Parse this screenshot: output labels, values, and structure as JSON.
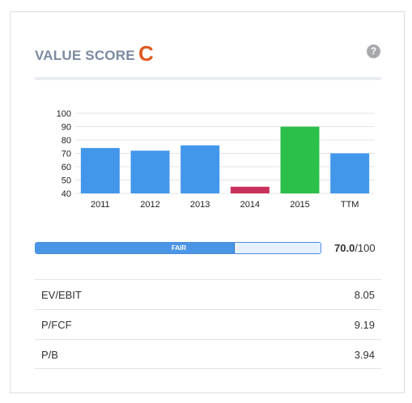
{
  "header": {
    "title": "VALUE SCORE",
    "grade": "C",
    "help_icon": "question-circle-icon"
  },
  "chart_data": {
    "type": "bar",
    "categories": [
      "2011",
      "2012",
      "2013",
      "2014",
      "2015",
      "TTM"
    ],
    "values": [
      74,
      72,
      76,
      45,
      90,
      70
    ],
    "colors": [
      "#4297eb",
      "#4297eb",
      "#4297eb",
      "#c8325a",
      "#2cc04a",
      "#4297eb"
    ],
    "ylim": [
      40,
      100
    ],
    "yticks": [
      40,
      50,
      60,
      70,
      80,
      90,
      100
    ],
    "grid": true,
    "title": "",
    "xlabel": "",
    "ylabel": ""
  },
  "score": {
    "label": "FAIR",
    "value": "70.0",
    "max": "/100",
    "fraction": 0.7
  },
  "metrics": [
    {
      "label": "EV/EBIT",
      "value": "8.05"
    },
    {
      "label": "P/FCF",
      "value": "9.19"
    },
    {
      "label": "P/B",
      "value": "3.94"
    }
  ],
  "colors": {
    "accent": "#e0581f",
    "bar_blue": "#4297eb",
    "title_gray": "#7a8aa0"
  }
}
